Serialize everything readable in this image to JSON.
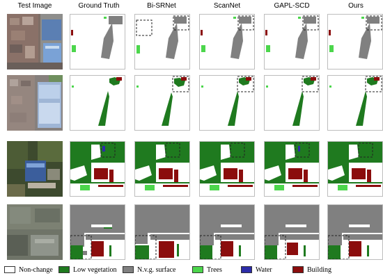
{
  "columns": {
    "test_image": "Test Image",
    "ground_truth": "Ground Truth",
    "bi_srnet": "Bi-SRNet",
    "scannet": "ScanNet",
    "gapl_scd": "GAPL-SCD",
    "ours": "Ours"
  },
  "legend": {
    "non_change": {
      "label": "Non-change",
      "color": "#ffffff"
    },
    "low_vegetation": {
      "label": "Low vegetation",
      "color": "#1f7a1f"
    },
    "nvg_surface": {
      "label": "N.v.g. surface",
      "color": "#808080"
    },
    "trees": {
      "label": "Trees",
      "color": "#4cd64c"
    },
    "water": {
      "label": "Water",
      "color": "#2c2ca8"
    },
    "building": {
      "label": "Building",
      "color": "#8b0d0d"
    }
  }
}
